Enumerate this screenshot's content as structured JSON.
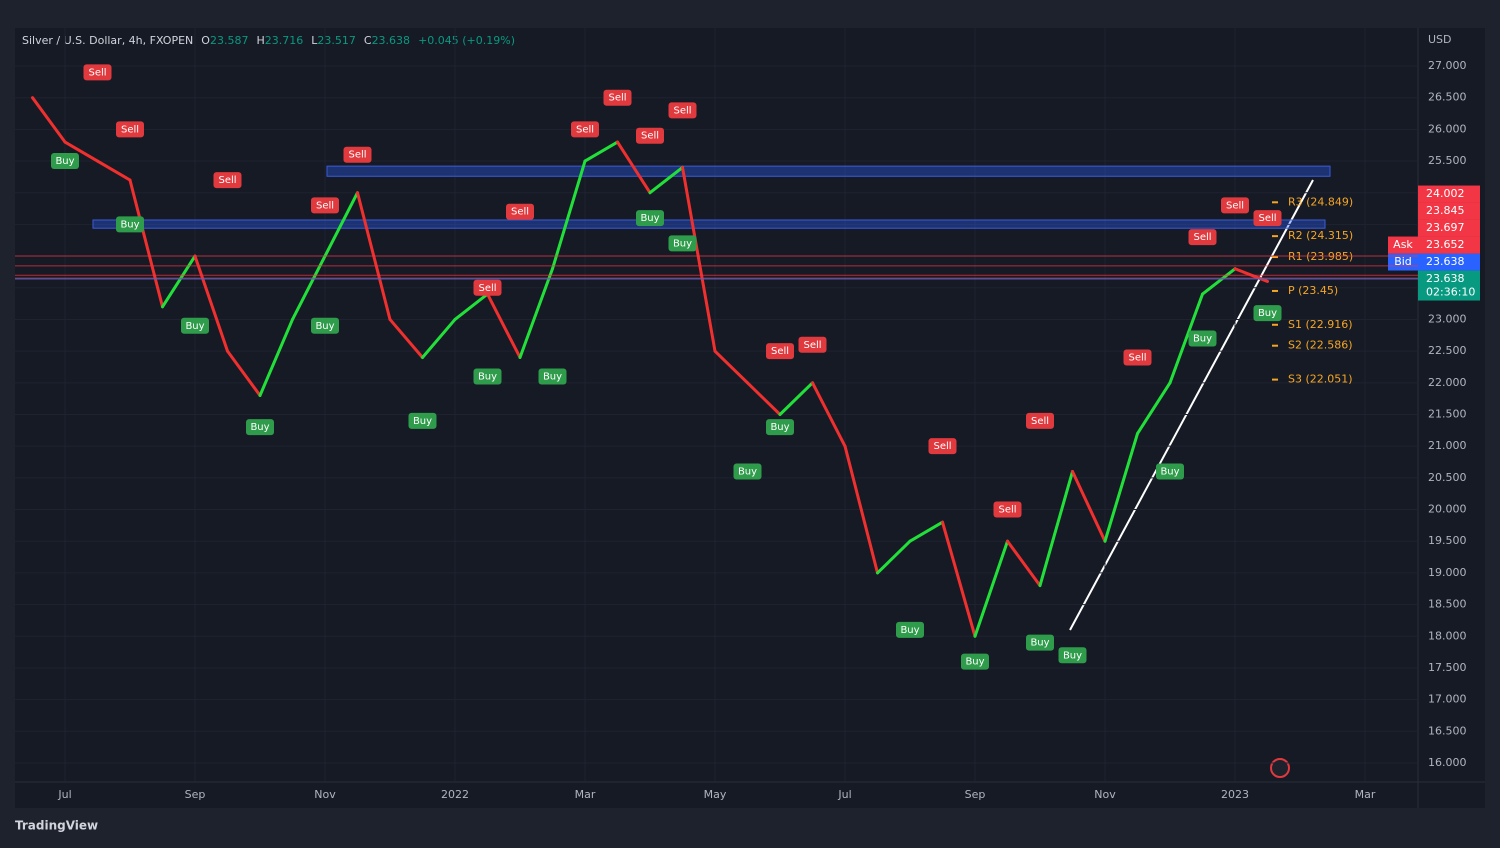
{
  "chart_data": {
    "type": "line",
    "title": "Silver / U.S. Dollar, 4h, FXOPEN",
    "ohlc": [
      {
        "label": "O",
        "value": 23.587
      },
      {
        "label": "H",
        "value": 23.716
      },
      {
        "label": "L",
        "value": 23.517
      },
      {
        "label": "C",
        "value": 23.638
      }
    ],
    "change": "+0.045 (+0.19%)",
    "currency": "USD",
    "categories": [
      null,
      "Jul",
      null,
      null,
      null,
      "Sep",
      null,
      null,
      null,
      "Nov",
      null,
      null,
      null,
      "2022",
      null,
      null,
      null,
      "Mar",
      null,
      null,
      null,
      "May",
      null,
      null,
      null,
      "Jul",
      null,
      null,
      null,
      "Sep",
      null,
      null,
      null,
      "Nov",
      null,
      null,
      null,
      "2023",
      null,
      null,
      null,
      "Mar"
    ],
    "values": [
      26.5,
      25.8,
      25.5,
      25.2,
      23.2,
      24.0,
      22.5,
      21.8,
      23.0,
      24.0,
      25.0,
      23.0,
      22.4,
      23.0,
      23.4,
      22.4,
      23.8,
      25.5,
      25.8,
      25.0,
      25.4,
      22.5,
      22.0,
      21.5,
      22.0,
      21.0,
      19.0,
      19.5,
      19.8,
      18.0,
      19.5,
      18.8,
      20.6,
      19.5,
      21.2,
      22.0,
      23.4,
      23.8,
      23.6,
      null,
      null,
      null
    ],
    "rising_color": "#22e03a",
    "falling_color": "#f0302e",
    "series": [
      {
        "name": "Buy",
        "color": "#2e9c4a",
        "values": [
          null,
          25.5,
          null,
          24.5,
          null,
          22.9,
          null,
          21.3,
          null,
          22.9,
          null,
          null,
          21.4,
          null,
          22.1,
          null,
          22.1,
          null,
          null,
          24.6,
          24.2,
          null,
          20.6,
          21.3,
          null,
          null,
          null,
          18.1,
          null,
          17.6,
          null,
          17.9,
          17.7,
          null,
          null,
          20.6,
          22.7,
          null,
          23.1,
          null,
          null,
          null
        ]
      },
      {
        "name": "Sell",
        "color": "#e0393e",
        "values": [
          null,
          null,
          26.9,
          26.0,
          null,
          null,
          25.2,
          null,
          null,
          24.8,
          25.6,
          null,
          null,
          null,
          23.5,
          24.7,
          null,
          26.0,
          26.5,
          25.9,
          26.3,
          null,
          null,
          22.5,
          22.6,
          null,
          null,
          null,
          21.0,
          null,
          20.0,
          21.4,
          null,
          null,
          22.4,
          null,
          24.3,
          24.8,
          24.6,
          null,
          null,
          null
        ]
      }
    ],
    "ylim": [
      15.7,
      27.6
    ],
    "yticks": [
      {
        "value": 16,
        "label": "16.000"
      },
      {
        "value": 16.5,
        "label": "16.500"
      },
      {
        "value": 17,
        "label": "17.000"
      },
      {
        "value": 17.5,
        "label": "17.500"
      },
      {
        "value": 18,
        "label": "18.000"
      },
      {
        "value": 18.5,
        "label": "18.500"
      },
      {
        "value": 19,
        "label": "19.000"
      },
      {
        "value": 19.5,
        "label": "19.500"
      },
      {
        "value": 20,
        "label": "20.000"
      },
      {
        "value": 20.5,
        "label": "20.500"
      },
      {
        "value": 21,
        "label": "21.000"
      },
      {
        "value": 21.5,
        "label": "21.500"
      },
      {
        "value": 22,
        "label": "22.000"
      },
      {
        "value": 22.5,
        "label": "22.500"
      },
      {
        "value": 23,
        "label": "23.000"
      },
      {
        "value": 23.5,
        "label": "23.500"
      },
      {
        "value": 24,
        "label": "24.000"
      },
      {
        "value": 24.5,
        "label": "24.500"
      },
      {
        "value": 25,
        "label": "25.000"
      },
      {
        "value": 25.5,
        "label": "25.500"
      },
      {
        "value": 26,
        "label": "26.000"
      },
      {
        "value": 26.5,
        "label": "26.500"
      },
      {
        "value": 27,
        "label": "27.000"
      }
    ],
    "zones": [
      [
        25.26,
        25.42
      ],
      [
        24.44,
        24.57
      ]
    ],
    "pivots": [
      {
        "label": "R3 (24.849)",
        "value": 24.849
      },
      {
        "label": "R2 (24.315)",
        "value": 24.315
      },
      {
        "label": "R1 (23.985)",
        "value": 23.985
      },
      {
        "label": "P (23.45)",
        "value": 23.45
      },
      {
        "label": "S1 (22.916)",
        "value": 22.916
      },
      {
        "label": "S2 (22.586)",
        "value": 22.586
      },
      {
        "label": "S3 (22.051)",
        "value": 22.051
      }
    ],
    "price_tags": [
      {
        "value": 24.002,
        "color": "#f23645"
      },
      {
        "value": 23.845,
        "color": "#f23645"
      },
      {
        "value": 23.697,
        "color": "#f23645"
      },
      {
        "label": "Ask",
        "value": 23.652,
        "color": "#f23645"
      },
      {
        "label": "Bid",
        "value": 23.638,
        "color": "#2962ff"
      },
      {
        "value": 23.638,
        "color": "#089981",
        "countdown": "02:36:10"
      }
    ],
    "brand": "TradingView"
  }
}
